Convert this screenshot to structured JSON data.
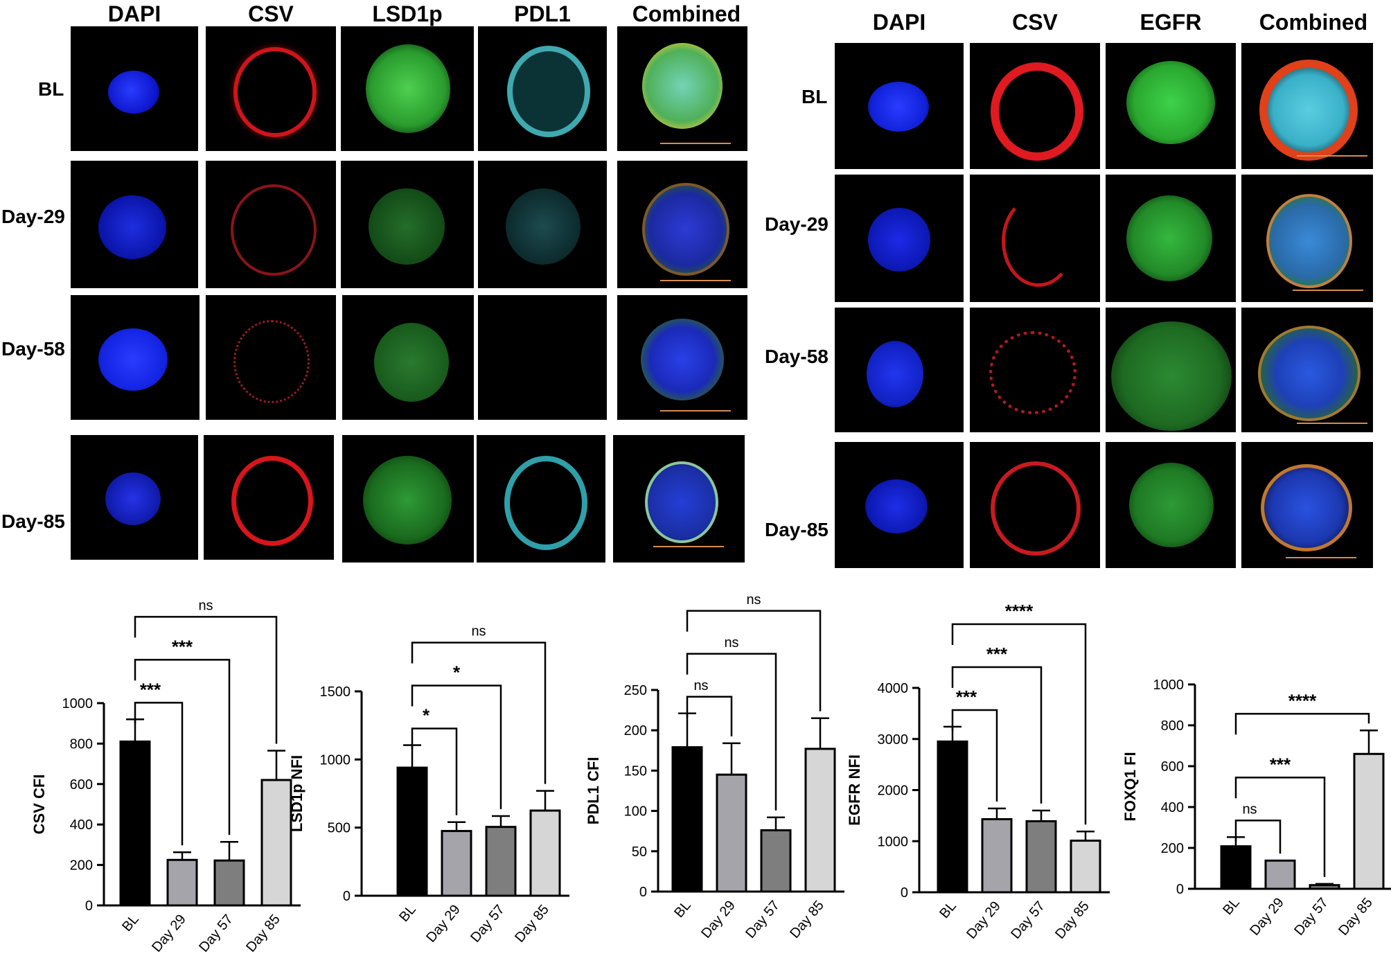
{
  "left_grid": {
    "column_headers": [
      "DAPI",
      "CSV",
      "LSD1p",
      "PDL1",
      "Combined"
    ],
    "row_labels": [
      "BL",
      "Day-29",
      "Day-58",
      "Day-85"
    ]
  },
  "right_grid": {
    "column_headers": [
      "DAPI",
      "CSV",
      "EGFR",
      "Combined"
    ],
    "row_labels": [
      "BL",
      "Day-29",
      "Day-58",
      "Day-85"
    ]
  },
  "colors": {
    "dapi": "#1a2cff",
    "csv": "#e0161c",
    "green": "#2fb83a",
    "cyan": "#3fb7bf",
    "scale_bar": "#d98b4c",
    "bar_bl": "#000000",
    "bar_day29": "#a4a4aa",
    "bar_day57": "#7e7e7e",
    "bar_day85": "#d6d6d6"
  },
  "chart_data": [
    {
      "type": "bar",
      "categories": [
        "BL",
        "Day 29",
        "Day 57",
        "Day 85"
      ],
      "values": [
        810,
        225,
        222,
        620
      ],
      "errors": [
        110,
        38,
        92,
        145
      ],
      "ylabel": "CSV CFI",
      "ylim": [
        0,
        1000
      ],
      "yticks": [
        "0",
        "200",
        "400",
        "600",
        "800",
        "1000"
      ],
      "brackets": [
        {
          "to": 1,
          "label": "***"
        },
        {
          "to": 2,
          "label": "***"
        },
        {
          "to": 3,
          "label": "ns"
        }
      ]
    },
    {
      "type": "bar",
      "categories": [
        "BL",
        "Day 29",
        "Day 57",
        "Day 85"
      ],
      "values": [
        940,
        475,
        505,
        625
      ],
      "errors": [
        165,
        65,
        80,
        145
      ],
      "ylabel": "LSD1p  NFI",
      "ylim": [
        0,
        1500
      ],
      "yticks": [
        "0",
        "500",
        "1000",
        "1500"
      ],
      "brackets": [
        {
          "to": 1,
          "label": "*"
        },
        {
          "to": 2,
          "label": "*"
        },
        {
          "to": 3,
          "label": "ns"
        }
      ]
    },
    {
      "type": "bar",
      "categories": [
        "BL",
        "Day 29",
        "Day 57",
        "Day 85"
      ],
      "values": [
        179,
        145,
        76,
        177
      ],
      "errors": [
        42,
        39,
        16,
        38
      ],
      "ylabel": "PDL1  CFI",
      "ylim": [
        0,
        250
      ],
      "yticks": [
        "0",
        "50",
        "100",
        "150",
        "200",
        "250"
      ],
      "brackets": [
        {
          "to": 1,
          "label": "ns"
        },
        {
          "to": 2,
          "label": "ns"
        },
        {
          "to": 3,
          "label": "ns"
        }
      ]
    },
    {
      "type": "bar",
      "categories": [
        "BL",
        "Day 29",
        "Day 57",
        "Day 85"
      ],
      "values": [
        2950,
        1430,
        1390,
        1010
      ],
      "errors": [
        290,
        210,
        210,
        180
      ],
      "ylabel": "EGFR NFI",
      "ylim": [
        0,
        4000
      ],
      "yticks": [
        "0",
        "1000",
        "2000",
        "3000",
        "4000"
      ],
      "brackets": [
        {
          "to": 1,
          "label": "***"
        },
        {
          "to": 2,
          "label": "***"
        },
        {
          "to": 3,
          "label": "****"
        }
      ]
    },
    {
      "type": "bar",
      "categories": [
        "BL",
        "Day 29",
        "Day 57",
        "Day 85"
      ],
      "values": [
        208,
        138,
        18,
        660
      ],
      "errors": [
        45,
        0,
        6,
        115
      ],
      "ylabel": "FOXQ1 FI",
      "ylim": [
        0,
        1000
      ],
      "yticks": [
        "0",
        "200",
        "400",
        "600",
        "800",
        "1000"
      ],
      "brackets": [
        {
          "to": 1,
          "label": "ns"
        },
        {
          "to": 2,
          "label": "***"
        },
        {
          "to": 3,
          "label": "****"
        }
      ]
    }
  ]
}
